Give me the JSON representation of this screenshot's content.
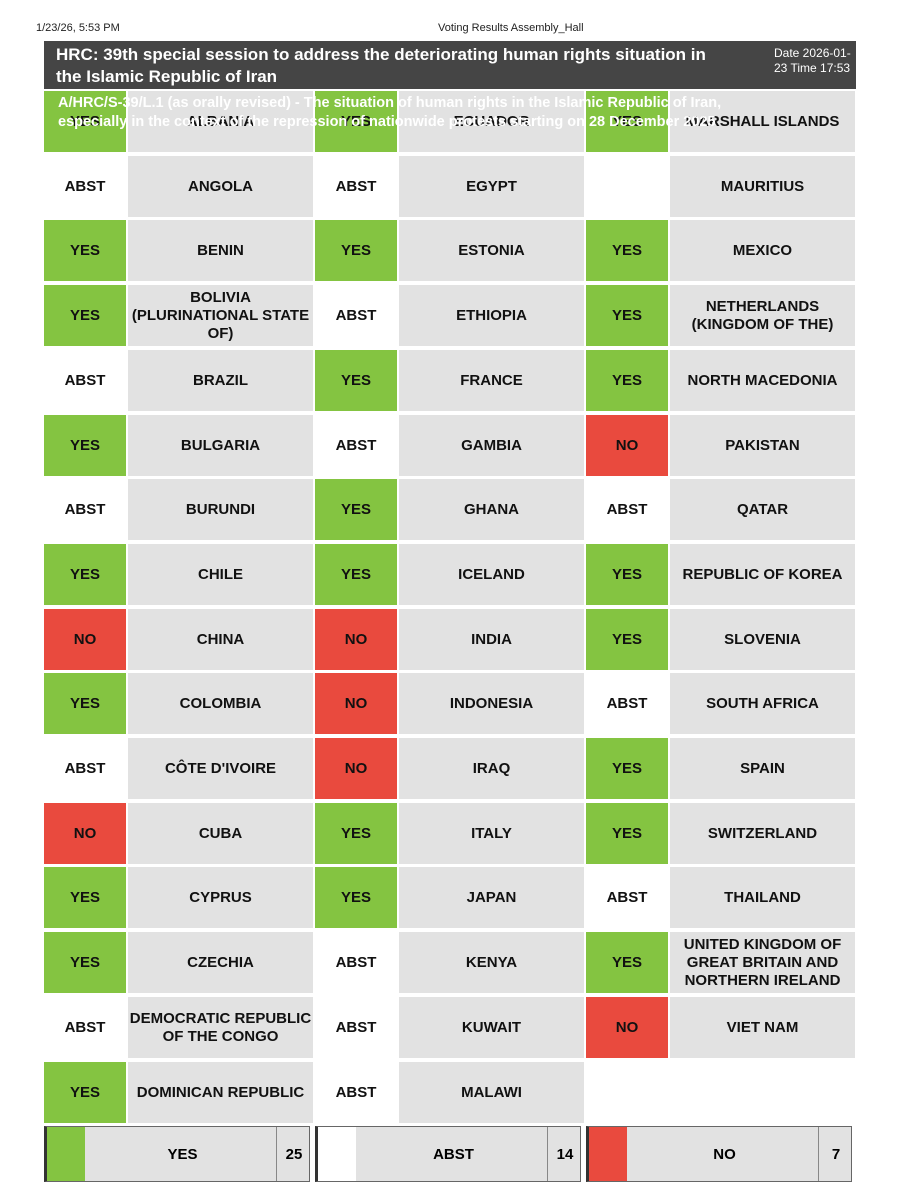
{
  "print_header": {
    "timestamp": "1/23/26, 5:53 PM",
    "page_title": "Voting Results Assembly_Hall"
  },
  "header": {
    "title": "HRC: 39th special session to address the deteriorating human rights situation in the Islamic Republic of Iran",
    "date_time": "Date 2026-01-23 Time 17:53"
  },
  "resolution": "A/HRC/S-39/L.1 (as orally revised) - The situation of human rights in the Islamic Republic of Iran, especially in the context of the repression of nationwide protests starting on 28 December 2025",
  "colors": {
    "yes": "#84c441",
    "no": "#e94a3e",
    "abst": "#ffffff",
    "name_bg": "#e2e2e2",
    "title_bg": "#454545"
  },
  "columns": [
    [
      {
        "vote": "YES",
        "country": "ALBANIA"
      },
      {
        "vote": "ABST",
        "country": "ANGOLA"
      },
      {
        "vote": "YES",
        "country": "BENIN"
      },
      {
        "vote": "YES",
        "country": "BOLIVIA (PLURINATIONAL STATE OF)"
      },
      {
        "vote": "ABST",
        "country": "BRAZIL"
      },
      {
        "vote": "YES",
        "country": "BULGARIA"
      },
      {
        "vote": "ABST",
        "country": "BURUNDI"
      },
      {
        "vote": "YES",
        "country": "CHILE"
      },
      {
        "vote": "NO",
        "country": "CHINA"
      },
      {
        "vote": "YES",
        "country": "COLOMBIA"
      },
      {
        "vote": "ABST",
        "country": "CÔTE D'IVOIRE"
      },
      {
        "vote": "NO",
        "country": "CUBA"
      },
      {
        "vote": "YES",
        "country": "CYPRUS"
      },
      {
        "vote": "YES",
        "country": "CZECHIA"
      },
      {
        "vote": "ABST",
        "country": "DEMOCRATIC REPUBLIC OF THE CONGO"
      },
      {
        "vote": "YES",
        "country": "DOMINICAN REPUBLIC"
      }
    ],
    [
      {
        "vote": "YES",
        "country": "ECUADOR"
      },
      {
        "vote": "ABST",
        "country": "EGYPT"
      },
      {
        "vote": "YES",
        "country": "ESTONIA"
      },
      {
        "vote": "ABST",
        "country": "ETHIOPIA"
      },
      {
        "vote": "YES",
        "country": "FRANCE"
      },
      {
        "vote": "ABST",
        "country": "GAMBIA"
      },
      {
        "vote": "YES",
        "country": "GHANA"
      },
      {
        "vote": "YES",
        "country": "ICELAND"
      },
      {
        "vote": "NO",
        "country": "INDIA"
      },
      {
        "vote": "NO",
        "country": "INDONESIA"
      },
      {
        "vote": "NO",
        "country": "IRAQ"
      },
      {
        "vote": "YES",
        "country": "ITALY"
      },
      {
        "vote": "YES",
        "country": "JAPAN"
      },
      {
        "vote": "ABST",
        "country": "KENYA"
      },
      {
        "vote": "ABST",
        "country": "KUWAIT"
      },
      {
        "vote": "ABST",
        "country": "MALAWI"
      }
    ],
    [
      {
        "vote": "YES",
        "country": "MARSHALL ISLANDS"
      },
      {
        "vote": "",
        "country": "MAURITIUS"
      },
      {
        "vote": "YES",
        "country": "MEXICO"
      },
      {
        "vote": "YES",
        "country": "NETHERLANDS (KINGDOM OF THE)"
      },
      {
        "vote": "YES",
        "country": "NORTH MACEDONIA"
      },
      {
        "vote": "NO",
        "country": "PAKISTAN"
      },
      {
        "vote": "ABST",
        "country": "QATAR"
      },
      {
        "vote": "YES",
        "country": "REPUBLIC OF KOREA"
      },
      {
        "vote": "YES",
        "country": "SLOVENIA"
      },
      {
        "vote": "ABST",
        "country": "SOUTH AFRICA"
      },
      {
        "vote": "YES",
        "country": "SPAIN"
      },
      {
        "vote": "YES",
        "country": "SWITZERLAND"
      },
      {
        "vote": "ABST",
        "country": "THAILAND"
      },
      {
        "vote": "YES",
        "country": "UNITED KINGDOM OF GREAT BRITAIN AND NORTHERN IRELAND"
      },
      {
        "vote": "NO",
        "country": "VIET NAM"
      }
    ]
  ],
  "totals": [
    {
      "vote": "YES",
      "label": "YES",
      "count": "25"
    },
    {
      "vote": "ABST",
      "label": "ABST",
      "count": "14"
    },
    {
      "vote": "NO",
      "label": "NO",
      "count": "7"
    }
  ]
}
